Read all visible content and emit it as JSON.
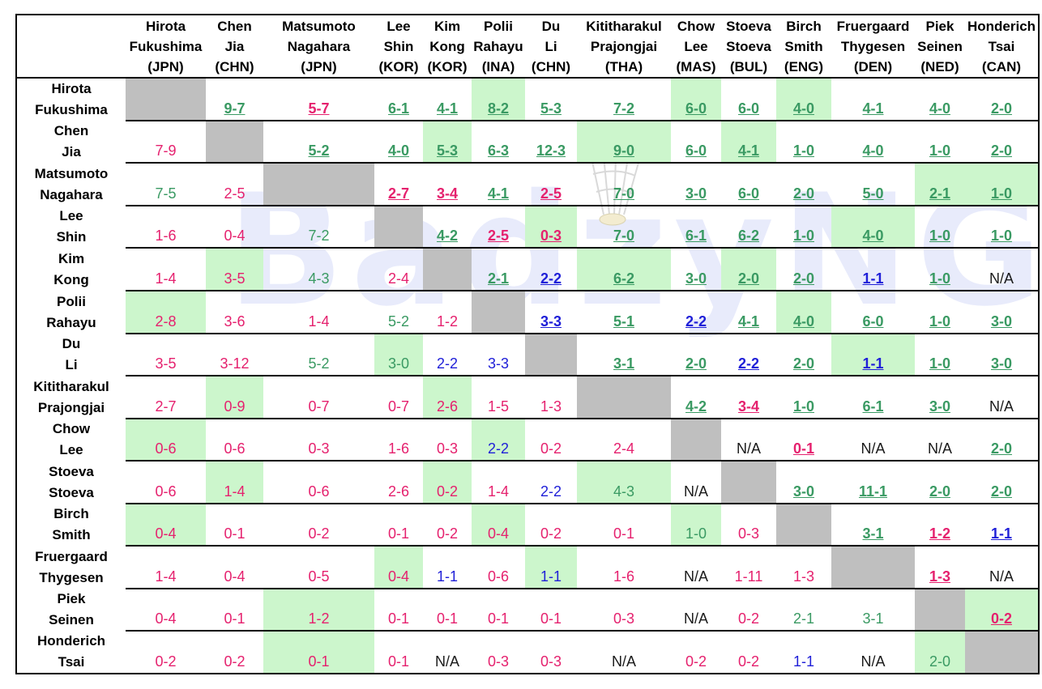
{
  "watermark": "BadzyNG",
  "players": [
    {
      "first": "Hirota",
      "last": "Fukushima",
      "code": "(JPN)"
    },
    {
      "first": "Chen",
      "last": "Jia",
      "code": "(CHN)"
    },
    {
      "first": "Matsumoto",
      "last": "Nagahara",
      "code": "(JPN)"
    },
    {
      "first": "Lee",
      "last": "Shin",
      "code": "(KOR)"
    },
    {
      "first": "Kim",
      "last": "Kong",
      "code": "(KOR)"
    },
    {
      "first": "Polii",
      "last": "Rahayu",
      "code": "(INA)"
    },
    {
      "first": "Du",
      "last": "Li",
      "code": "(CHN)"
    },
    {
      "first": "Kititharakul",
      "last": "Prajongjai",
      "code": "(THA)"
    },
    {
      "first": "Chow",
      "last": "Lee",
      "code": "(MAS)"
    },
    {
      "first": "Stoeva",
      "last": "Stoeva",
      "code": "(BUL)"
    },
    {
      "first": "Birch",
      "last": "Smith",
      "code": "(ENG)"
    },
    {
      "first": "Fruergaard",
      "last": "Thygesen",
      "code": "(DEN)"
    },
    {
      "first": "Piek",
      "last": "Seinen",
      "code": "(NED)"
    },
    {
      "first": "Honderich",
      "last": "Tsai",
      "code": "(CAN)"
    }
  ],
  "rows": [
    [
      {
        "v": "",
        "bg": "x"
      },
      {
        "v": "9-7",
        "c": "green",
        "u": 1
      },
      {
        "v": "5-7",
        "c": "pink",
        "u": 1
      },
      {
        "v": "6-1",
        "c": "green",
        "u": 1
      },
      {
        "v": "4-1",
        "c": "green",
        "u": 1
      },
      {
        "v": "8-2",
        "c": "green",
        "u": 1,
        "bg": "g"
      },
      {
        "v": "5-3",
        "c": "green",
        "u": 1
      },
      {
        "v": "7-2",
        "c": "green",
        "u": 1
      },
      {
        "v": "6-0",
        "c": "green",
        "u": 1,
        "bg": "g"
      },
      {
        "v": "6-0",
        "c": "green",
        "u": 1
      },
      {
        "v": "4-0",
        "c": "green",
        "u": 1,
        "bg": "g"
      },
      {
        "v": "4-1",
        "c": "green",
        "u": 1
      },
      {
        "v": "4-0",
        "c": "green",
        "u": 1
      },
      {
        "v": "2-0",
        "c": "green",
        "u": 1
      }
    ],
    [
      {
        "v": "7-9",
        "c": "pink"
      },
      {
        "v": "",
        "bg": "x"
      },
      {
        "v": "5-2",
        "c": "green",
        "u": 1
      },
      {
        "v": "4-0",
        "c": "green",
        "u": 1
      },
      {
        "v": "5-3",
        "c": "green",
        "u": 1,
        "bg": "g"
      },
      {
        "v": "6-3",
        "c": "green",
        "u": 1
      },
      {
        "v": "12-3",
        "c": "green",
        "u": 1
      },
      {
        "v": "9-0",
        "c": "green",
        "u": 1,
        "bg": "g"
      },
      {
        "v": "6-0",
        "c": "green",
        "u": 1
      },
      {
        "v": "4-1",
        "c": "green",
        "u": 1,
        "bg": "g"
      },
      {
        "v": "1-0",
        "c": "green",
        "u": 1
      },
      {
        "v": "4-0",
        "c": "green",
        "u": 1
      },
      {
        "v": "1-0",
        "c": "green",
        "u": 1
      },
      {
        "v": "2-0",
        "c": "green",
        "u": 1
      }
    ],
    [
      {
        "v": "7-5",
        "c": "green"
      },
      {
        "v": "2-5",
        "c": "pink"
      },
      {
        "v": "",
        "bg": "x"
      },
      {
        "v": "2-7",
        "c": "pink",
        "u": 1
      },
      {
        "v": "3-4",
        "c": "pink",
        "u": 1
      },
      {
        "v": "4-1",
        "c": "green",
        "u": 1
      },
      {
        "v": "2-5",
        "c": "pink",
        "u": 1
      },
      {
        "v": "7-0",
        "c": "green",
        "u": 1
      },
      {
        "v": "3-0",
        "c": "green",
        "u": 1
      },
      {
        "v": "6-0",
        "c": "green",
        "u": 1
      },
      {
        "v": "2-0",
        "c": "green",
        "u": 1
      },
      {
        "v": "5-0",
        "c": "green",
        "u": 1
      },
      {
        "v": "2-1",
        "c": "green",
        "u": 1,
        "bg": "g"
      },
      {
        "v": "1-0",
        "c": "green",
        "u": 1,
        "bg": "g"
      }
    ],
    [
      {
        "v": "1-6",
        "c": "pink"
      },
      {
        "v": "0-4",
        "c": "pink"
      },
      {
        "v": "7-2",
        "c": "green"
      },
      {
        "v": "",
        "bg": "x"
      },
      {
        "v": "4-2",
        "c": "green",
        "u": 1
      },
      {
        "v": "2-5",
        "c": "pink",
        "u": 1
      },
      {
        "v": "0-3",
        "c": "pink",
        "u": 1,
        "bg": "g"
      },
      {
        "v": "7-0",
        "c": "green",
        "u": 1
      },
      {
        "v": "6-1",
        "c": "green",
        "u": 1
      },
      {
        "v": "6-2",
        "c": "green",
        "u": 1
      },
      {
        "v": "1-0",
        "c": "green",
        "u": 1
      },
      {
        "v": "4-0",
        "c": "green",
        "u": 1,
        "bg": "g"
      },
      {
        "v": "1-0",
        "c": "green",
        "u": 1
      },
      {
        "v": "1-0",
        "c": "green",
        "u": 1
      }
    ],
    [
      {
        "v": "1-4",
        "c": "pink"
      },
      {
        "v": "3-5",
        "c": "pink",
        "bg": "g"
      },
      {
        "v": "4-3",
        "c": "green"
      },
      {
        "v": "2-4",
        "c": "pink"
      },
      {
        "v": "",
        "bg": "x"
      },
      {
        "v": "2-1",
        "c": "green",
        "u": 1
      },
      {
        "v": "2-2",
        "c": "blue",
        "u": 1
      },
      {
        "v": "6-2",
        "c": "green",
        "u": 1,
        "bg": "g"
      },
      {
        "v": "3-0",
        "c": "green",
        "u": 1
      },
      {
        "v": "2-0",
        "c": "green",
        "u": 1,
        "bg": "g"
      },
      {
        "v": "2-0",
        "c": "green",
        "u": 1
      },
      {
        "v": "1-1",
        "c": "blue",
        "u": 1
      },
      {
        "v": "1-0",
        "c": "green",
        "u": 1
      },
      {
        "v": "N/A",
        "c": "black"
      }
    ],
    [
      {
        "v": "2-8",
        "c": "pink",
        "bg": "g"
      },
      {
        "v": "3-6",
        "c": "pink"
      },
      {
        "v": "1-4",
        "c": "pink"
      },
      {
        "v": "5-2",
        "c": "green"
      },
      {
        "v": "1-2",
        "c": "pink"
      },
      {
        "v": "",
        "bg": "x"
      },
      {
        "v": "3-3",
        "c": "blue",
        "u": 1
      },
      {
        "v": "5-1",
        "c": "green",
        "u": 1
      },
      {
        "v": "2-2",
        "c": "blue",
        "u": 1
      },
      {
        "v": "4-1",
        "c": "green",
        "u": 1
      },
      {
        "v": "4-0",
        "c": "green",
        "u": 1,
        "bg": "g"
      },
      {
        "v": "6-0",
        "c": "green",
        "u": 1
      },
      {
        "v": "1-0",
        "c": "green",
        "u": 1
      },
      {
        "v": "3-0",
        "c": "green",
        "u": 1
      }
    ],
    [
      {
        "v": "3-5",
        "c": "pink"
      },
      {
        "v": "3-12",
        "c": "pink"
      },
      {
        "v": "5-2",
        "c": "green"
      },
      {
        "v": "3-0",
        "c": "green",
        "bg": "g"
      },
      {
        "v": "2-2",
        "c": "blue"
      },
      {
        "v": "3-3",
        "c": "blue"
      },
      {
        "v": "",
        "bg": "x"
      },
      {
        "v": "3-1",
        "c": "green",
        "u": 1
      },
      {
        "v": "2-0",
        "c": "green",
        "u": 1
      },
      {
        "v": "2-2",
        "c": "blue",
        "u": 1
      },
      {
        "v": "2-0",
        "c": "green",
        "u": 1
      },
      {
        "v": "1-1",
        "c": "blue",
        "u": 1,
        "bg": "g"
      },
      {
        "v": "1-0",
        "c": "green",
        "u": 1
      },
      {
        "v": "3-0",
        "c": "green",
        "u": 1
      }
    ],
    [
      {
        "v": "2-7",
        "c": "pink"
      },
      {
        "v": "0-9",
        "c": "pink",
        "bg": "g"
      },
      {
        "v": "0-7",
        "c": "pink"
      },
      {
        "v": "0-7",
        "c": "pink"
      },
      {
        "v": "2-6",
        "c": "pink",
        "bg": "g"
      },
      {
        "v": "1-5",
        "c": "pink"
      },
      {
        "v": "1-3",
        "c": "pink"
      },
      {
        "v": "",
        "bg": "x"
      },
      {
        "v": "4-2",
        "c": "green",
        "u": 1
      },
      {
        "v": "3-4",
        "c": "pink",
        "u": 1
      },
      {
        "v": "1-0",
        "c": "green",
        "u": 1
      },
      {
        "v": "6-1",
        "c": "green",
        "u": 1
      },
      {
        "v": "3-0",
        "c": "green",
        "u": 1
      },
      {
        "v": "N/A",
        "c": "black"
      }
    ],
    [
      {
        "v": "0-6",
        "c": "pink",
        "bg": "g"
      },
      {
        "v": "0-6",
        "c": "pink"
      },
      {
        "v": "0-3",
        "c": "pink"
      },
      {
        "v": "1-6",
        "c": "pink"
      },
      {
        "v": "0-3",
        "c": "pink"
      },
      {
        "v": "2-2",
        "c": "blue",
        "bg": "g"
      },
      {
        "v": "0-2",
        "c": "pink"
      },
      {
        "v": "2-4",
        "c": "pink"
      },
      {
        "v": "",
        "bg": "x"
      },
      {
        "v": "N/A",
        "c": "black"
      },
      {
        "v": "0-1",
        "c": "pink",
        "u": 1
      },
      {
        "v": "N/A",
        "c": "black"
      },
      {
        "v": "N/A",
        "c": "black"
      },
      {
        "v": "2-0",
        "c": "green",
        "u": 1
      }
    ],
    [
      {
        "v": "0-6",
        "c": "pink"
      },
      {
        "v": "1-4",
        "c": "pink",
        "bg": "g"
      },
      {
        "v": "0-6",
        "c": "pink"
      },
      {
        "v": "2-6",
        "c": "pink"
      },
      {
        "v": "0-2",
        "c": "pink",
        "bg": "g"
      },
      {
        "v": "1-4",
        "c": "pink"
      },
      {
        "v": "2-2",
        "c": "blue"
      },
      {
        "v": "4-3",
        "c": "green",
        "bg": "g"
      },
      {
        "v": "N/A",
        "c": "black"
      },
      {
        "v": "",
        "bg": "x"
      },
      {
        "v": "3-0",
        "c": "green",
        "u": 1
      },
      {
        "v": "11-1",
        "c": "green",
        "u": 1
      },
      {
        "v": "2-0",
        "c": "green",
        "u": 1
      },
      {
        "v": "2-0",
        "c": "green",
        "u": 1
      }
    ],
    [
      {
        "v": "0-4",
        "c": "pink",
        "bg": "g"
      },
      {
        "v": "0-1",
        "c": "pink"
      },
      {
        "v": "0-2",
        "c": "pink"
      },
      {
        "v": "0-1",
        "c": "pink"
      },
      {
        "v": "0-2",
        "c": "pink"
      },
      {
        "v": "0-4",
        "c": "pink",
        "bg": "g"
      },
      {
        "v": "0-2",
        "c": "pink"
      },
      {
        "v": "0-1",
        "c": "pink"
      },
      {
        "v": "1-0",
        "c": "green",
        "bg": "g"
      },
      {
        "v": "0-3",
        "c": "pink"
      },
      {
        "v": "",
        "bg": "x"
      },
      {
        "v": "3-1",
        "c": "green",
        "u": 1
      },
      {
        "v": "1-2",
        "c": "pink",
        "u": 1
      },
      {
        "v": "1-1",
        "c": "blue",
        "u": 1
      }
    ],
    [
      {
        "v": "1-4",
        "c": "pink"
      },
      {
        "v": "0-4",
        "c": "pink"
      },
      {
        "v": "0-5",
        "c": "pink"
      },
      {
        "v": "0-4",
        "c": "pink",
        "bg": "g"
      },
      {
        "v": "1-1",
        "c": "blue"
      },
      {
        "v": "0-6",
        "c": "pink"
      },
      {
        "v": "1-1",
        "c": "blue",
        "bg": "g"
      },
      {
        "v": "1-6",
        "c": "pink"
      },
      {
        "v": "N/A",
        "c": "black"
      },
      {
        "v": "1-11",
        "c": "pink"
      },
      {
        "v": "1-3",
        "c": "pink"
      },
      {
        "v": "",
        "bg": "x"
      },
      {
        "v": "1-3",
        "c": "pink",
        "u": 1
      },
      {
        "v": "N/A",
        "c": "black"
      }
    ],
    [
      {
        "v": "0-4",
        "c": "pink"
      },
      {
        "v": "0-1",
        "c": "pink"
      },
      {
        "v": "1-2",
        "c": "pink",
        "bg": "g"
      },
      {
        "v": "0-1",
        "c": "pink"
      },
      {
        "v": "0-1",
        "c": "pink"
      },
      {
        "v": "0-1",
        "c": "pink"
      },
      {
        "v": "0-1",
        "c": "pink"
      },
      {
        "v": "0-3",
        "c": "pink"
      },
      {
        "v": "N/A",
        "c": "black"
      },
      {
        "v": "0-2",
        "c": "pink"
      },
      {
        "v": "2-1",
        "c": "green"
      },
      {
        "v": "3-1",
        "c": "green"
      },
      {
        "v": "",
        "bg": "x"
      },
      {
        "v": "0-2",
        "c": "pink",
        "u": 1,
        "bg": "g"
      }
    ],
    [
      {
        "v": "0-2",
        "c": "pink"
      },
      {
        "v": "0-2",
        "c": "pink"
      },
      {
        "v": "0-1",
        "c": "pink",
        "bg": "g"
      },
      {
        "v": "0-1",
        "c": "pink"
      },
      {
        "v": "N/A",
        "c": "black"
      },
      {
        "v": "0-3",
        "c": "pink"
      },
      {
        "v": "0-3",
        "c": "pink"
      },
      {
        "v": "N/A",
        "c": "black"
      },
      {
        "v": "0-2",
        "c": "pink"
      },
      {
        "v": "0-2",
        "c": "pink"
      },
      {
        "v": "1-1",
        "c": "blue"
      },
      {
        "v": "N/A",
        "c": "black"
      },
      {
        "v": "2-0",
        "c": "green",
        "bg": "g"
      },
      {
        "v": "",
        "bg": "x"
      }
    ]
  ]
}
